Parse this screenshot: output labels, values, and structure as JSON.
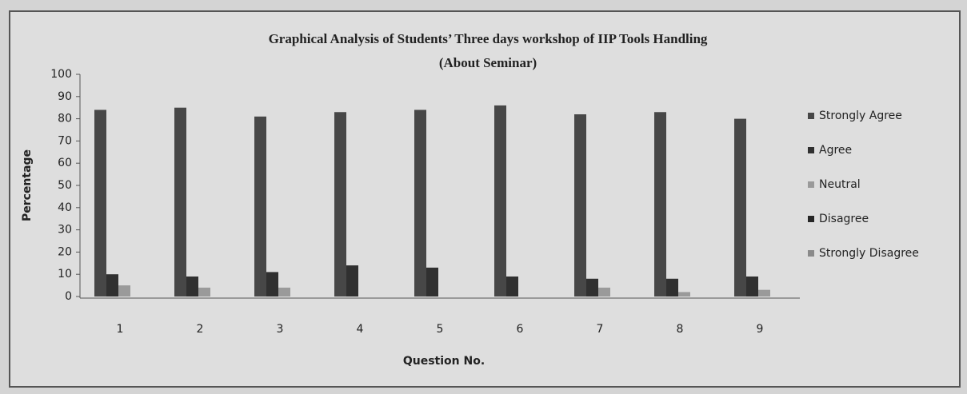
{
  "chart_data": {
    "type": "bar",
    "title": "Graphical Analysis of Students’ Three days workshop of IIP Tools Handling",
    "subtitle": "(About Seminar)",
    "x_label": "Question No.",
    "y_label": "Percentage",
    "categories": [
      "1",
      "2",
      "3",
      "4",
      "5",
      "6",
      "7",
      "8",
      "9"
    ],
    "series": [
      {
        "name": "Strongly Agree",
        "color": "#474747",
        "values": [
          84,
          85,
          81,
          83,
          84,
          86,
          82,
          83,
          80
        ]
      },
      {
        "name": "Agree",
        "color": "#303030",
        "values": [
          10,
          9,
          11,
          14,
          13,
          9,
          8,
          8,
          9
        ]
      },
      {
        "name": "Neutral",
        "color": "#9a9a9a",
        "values": [
          5,
          4,
          4,
          0,
          0,
          0,
          4,
          2,
          3
        ]
      },
      {
        "name": "Disagree",
        "color": "#262626",
        "values": [
          0,
          0,
          0,
          0,
          0,
          0,
          0,
          0,
          0
        ]
      },
      {
        "name": "Strongly Disagree",
        "color": "#8a8a8a",
        "values": [
          0,
          0,
          0,
          0,
          0,
          0,
          0,
          0,
          0
        ]
      }
    ],
    "ylim": [
      0,
      100
    ],
    "yticks": [
      0,
      10,
      20,
      30,
      40,
      50,
      60,
      70,
      80,
      90,
      100
    ],
    "grid": false,
    "legend": "right"
  }
}
